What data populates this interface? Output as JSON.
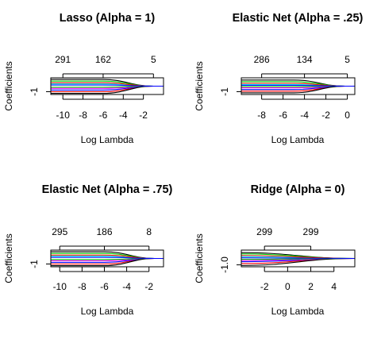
{
  "chart_data": [
    {
      "type": "line",
      "title": "Lasso (Alpha = 1)",
      "xlabel": "Log Lambda",
      "ylabel": "Coefficients",
      "xlim": [
        -11.2,
        0
      ],
      "ylim": [
        -1.5,
        1.5
      ],
      "x_ticks": [
        -10,
        -8,
        -6,
        -4,
        -2
      ],
      "x_tick_labels": [
        "-10",
        "-8",
        "-6",
        "-4",
        "-2"
      ],
      "y_ticks": [
        -1
      ],
      "y_tick_labels": [
        "-1"
      ],
      "top_ticks": [
        -10,
        -6,
        -1
      ],
      "top_labels": [
        "291",
        "162",
        "5"
      ],
      "paths_from_x": -6,
      "paths_to_x": -1,
      "series": [
        {
          "color": "#000000",
          "start": 1.2,
          "end": 0
        },
        {
          "color": "#ff0000",
          "start": -1.0,
          "end": 0
        },
        {
          "color": "#00cd00",
          "start": 0.9,
          "end": 0
        },
        {
          "color": "#0000ff",
          "start": -0.7,
          "end": 0
        },
        {
          "color": "#00ffff",
          "start": 0.4,
          "end": 0
        },
        {
          "color": "#ff00ff",
          "start": -0.4,
          "end": 0
        },
        {
          "color": "#000000",
          "start": -1.3,
          "end": 0
        },
        {
          "color": "#ff0000",
          "start": 0.6,
          "end": 0
        },
        {
          "color": "#00cd00",
          "start": -0.2,
          "end": 0
        },
        {
          "color": "#0000ff",
          "start": 0.2,
          "end": 0
        }
      ]
    },
    {
      "type": "line",
      "title": "Elastic Net (Alpha = .25)",
      "xlabel": "Log Lambda",
      "ylabel": "Coefficients",
      "xlim": [
        -9.9,
        0.7
      ],
      "ylim": [
        -1.5,
        1.5
      ],
      "x_ticks": [
        -8,
        -6,
        -4,
        -2,
        0
      ],
      "x_tick_labels": [
        "-8",
        "-6",
        "-4",
        "-2",
        "0"
      ],
      "y_ticks": [
        -1
      ],
      "y_tick_labels": [
        "-1"
      ],
      "top_ticks": [
        -8,
        -4,
        0
      ],
      "top_labels": [
        "286",
        "134",
        "5"
      ],
      "paths_from_x": -5,
      "paths_to_x": -0.2,
      "series": [
        {
          "color": "#000000",
          "start": 1.1,
          "end": 0
        },
        {
          "color": "#ff0000",
          "start": -0.9,
          "end": 0
        },
        {
          "color": "#00cd00",
          "start": 0.8,
          "end": 0
        },
        {
          "color": "#0000ff",
          "start": -0.6,
          "end": 0
        },
        {
          "color": "#00ffff",
          "start": 0.3,
          "end": 0
        },
        {
          "color": "#ff00ff",
          "start": -0.3,
          "end": 0
        },
        {
          "color": "#000000",
          "start": -1.2,
          "end": 0
        },
        {
          "color": "#ff0000",
          "start": 0.5,
          "end": 0
        },
        {
          "color": "#00cd00",
          "start": -0.1,
          "end": 0
        },
        {
          "color": "#0000ff",
          "start": 0.15,
          "end": 0
        }
      ]
    },
    {
      "type": "line",
      "title": "Elastic Net (Alpha = .75)",
      "xlabel": "Log Lambda",
      "ylabel": "Coefficients",
      "xlim": [
        -10.8,
        -0.7
      ],
      "ylim": [
        -1.5,
        1.5
      ],
      "x_ticks": [
        -10,
        -8,
        -6,
        -4,
        -2
      ],
      "x_tick_labels": [
        "-10",
        "-8",
        "-6",
        "-4",
        "-2"
      ],
      "y_ticks": [
        -1
      ],
      "y_tick_labels": [
        "-1"
      ],
      "top_ticks": [
        -10,
        -6,
        -2
      ],
      "top_labels": [
        "295",
        "186",
        "8"
      ],
      "paths_from_x": -6,
      "paths_to_x": -1.5,
      "series": [
        {
          "color": "#000000",
          "start": 1.2,
          "end": 0
        },
        {
          "color": "#ff0000",
          "start": -1.0,
          "end": 0
        },
        {
          "color": "#00cd00",
          "start": 0.9,
          "end": 0
        },
        {
          "color": "#0000ff",
          "start": -0.7,
          "end": 0
        },
        {
          "color": "#00ffff",
          "start": 0.4,
          "end": 0
        },
        {
          "color": "#ff00ff",
          "start": -0.4,
          "end": 0
        },
        {
          "color": "#000000",
          "start": -1.3,
          "end": 0
        },
        {
          "color": "#ff0000",
          "start": 0.6,
          "end": 0
        },
        {
          "color": "#00cd00",
          "start": -0.2,
          "end": 0
        },
        {
          "color": "#0000ff",
          "start": 0.2,
          "end": 0
        }
      ]
    },
    {
      "type": "line",
      "title": "Ridge (Alpha = 0)",
      "xlabel": "Log Lambda",
      "ylabel": "Coefficients",
      "xlim": [
        -4.0,
        5.8
      ],
      "ylim": [
        -1.3,
        1.3
      ],
      "x_ticks": [
        -2,
        0,
        2,
        4
      ],
      "x_tick_labels": [
        "-2",
        "0",
        "2",
        "4"
      ],
      "y_ticks": [
        -1.0
      ],
      "y_tick_labels": [
        "-1.0"
      ],
      "top_ticks": [
        -2,
        2
      ],
      "top_labels": [
        "299",
        "299"
      ],
      "paths_from_x": -4,
      "paths_to_x": 5.8,
      "series": [
        {
          "color": "#000000",
          "start": 0.9,
          "end": 0
        },
        {
          "color": "#ff0000",
          "start": -0.8,
          "end": 0
        },
        {
          "color": "#00cd00",
          "start": 0.7,
          "end": 0
        },
        {
          "color": "#0000ff",
          "start": -0.5,
          "end": 0
        },
        {
          "color": "#00ffff",
          "start": 0.3,
          "end": 0
        },
        {
          "color": "#ff00ff",
          "start": -0.3,
          "end": 0
        },
        {
          "color": "#000000",
          "start": -1.1,
          "end": 0
        },
        {
          "color": "#ff0000",
          "start": 0.45,
          "end": 0
        },
        {
          "color": "#00cd00",
          "start": -0.15,
          "end": 0
        },
        {
          "color": "#0000ff",
          "start": 0.1,
          "end": 0
        }
      ]
    }
  ]
}
